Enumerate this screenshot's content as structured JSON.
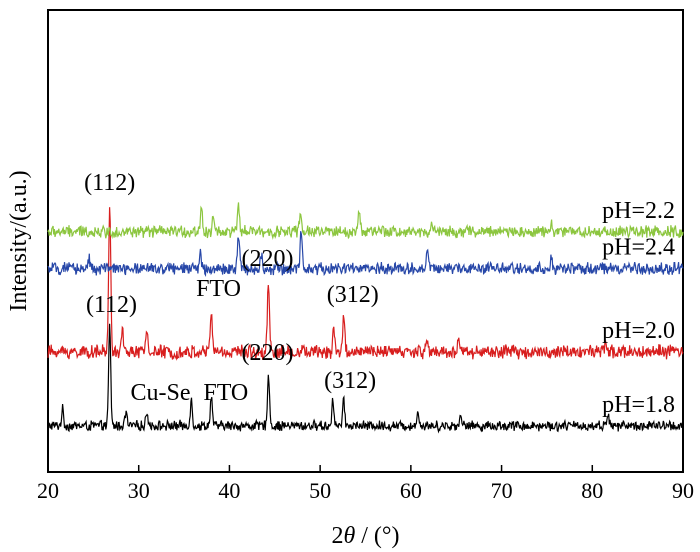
{
  "chart_data": {
    "type": "line",
    "title": "",
    "xlabel": {
      "prefix": "2",
      "theta": "θ",
      "suffix": " / (°)"
    },
    "ylabel": "Intensity/(a.u.)",
    "xlim": [
      20,
      90
    ],
    "xticks": [
      20,
      30,
      40,
      50,
      60,
      70,
      80,
      90
    ],
    "grid": false,
    "y_ticks_shown": false,
    "series": [
      {
        "name": "pH=1.8",
        "color": "#000000",
        "baseline_frac": 0.1,
        "noise": 6,
        "peaks": [
          {
            "x": 21.6,
            "h": 16
          },
          {
            "x": 26.8,
            "h": 100
          },
          {
            "x": 28.6,
            "h": 14
          },
          {
            "x": 30.9,
            "h": 15
          },
          {
            "x": 35.8,
            "h": 26
          },
          {
            "x": 38.0,
            "h": 30
          },
          {
            "x": 44.3,
            "h": 52
          },
          {
            "x": 51.4,
            "h": 26
          },
          {
            "x": 52.6,
            "h": 24
          },
          {
            "x": 60.8,
            "h": 15
          },
          {
            "x": 65.5,
            "h": 12
          },
          {
            "x": 81.7,
            "h": 13
          }
        ]
      },
      {
        "name": "pH=2.0",
        "color": "#d81e1e",
        "baseline_frac": 0.26,
        "noise": 8,
        "peaks": [
          {
            "x": 26.8,
            "h": 148
          },
          {
            "x": 28.2,
            "h": 20
          },
          {
            "x": 30.9,
            "h": 22
          },
          {
            "x": 38.0,
            "h": 42
          },
          {
            "x": 44.3,
            "h": 72
          },
          {
            "x": 51.5,
            "h": 24
          },
          {
            "x": 52.6,
            "h": 36
          },
          {
            "x": 61.8,
            "h": 14
          },
          {
            "x": 65.3,
            "h": 16
          },
          {
            "x": 81.5,
            "h": 10
          }
        ]
      },
      {
        "name": "pH=2.2",
        "color": "#8cc63f",
        "baseline_frac": 0.52,
        "noise": 7,
        "peaks": [
          {
            "x": 36.9,
            "h": 26
          },
          {
            "x": 38.2,
            "h": 14
          },
          {
            "x": 41.0,
            "h": 24
          },
          {
            "x": 47.8,
            "h": 18
          },
          {
            "x": 54.3,
            "h": 20
          },
          {
            "x": 62.3,
            "h": 10
          },
          {
            "x": 75.5,
            "h": 8
          }
        ]
      },
      {
        "name": "pH=2.4",
        "color": "#2747a8",
        "baseline_frac": 0.44,
        "noise": 7,
        "peaks": [
          {
            "x": 24.5,
            "h": 12
          },
          {
            "x": 36.8,
            "h": 16
          },
          {
            "x": 41.0,
            "h": 34
          },
          {
            "x": 43.5,
            "h": 14
          },
          {
            "x": 47.9,
            "h": 38
          },
          {
            "x": 61.8,
            "h": 20
          },
          {
            "x": 75.5,
            "h": 12
          }
        ]
      }
    ],
    "annotations": [
      {
        "series": 0,
        "text": "(112)",
        "x": 27.0
      },
      {
        "series": 0,
        "text": "Cu-Se",
        "x": 32.4
      },
      {
        "series": 0,
        "text": "FTO",
        "x": 39.6
      },
      {
        "series": 0,
        "text": "(220)",
        "x": 44.2
      },
      {
        "series": 0,
        "text": "(312)",
        "x": 53.3
      },
      {
        "series": 1,
        "text": "(112)",
        "x": 26.8
      },
      {
        "series": 1,
        "text": "FTO",
        "x": 38.8
      },
      {
        "series": 1,
        "text": "(220)",
        "x": 44.2
      },
      {
        "series": 1,
        "text": "(312)",
        "x": 53.6
      }
    ]
  }
}
